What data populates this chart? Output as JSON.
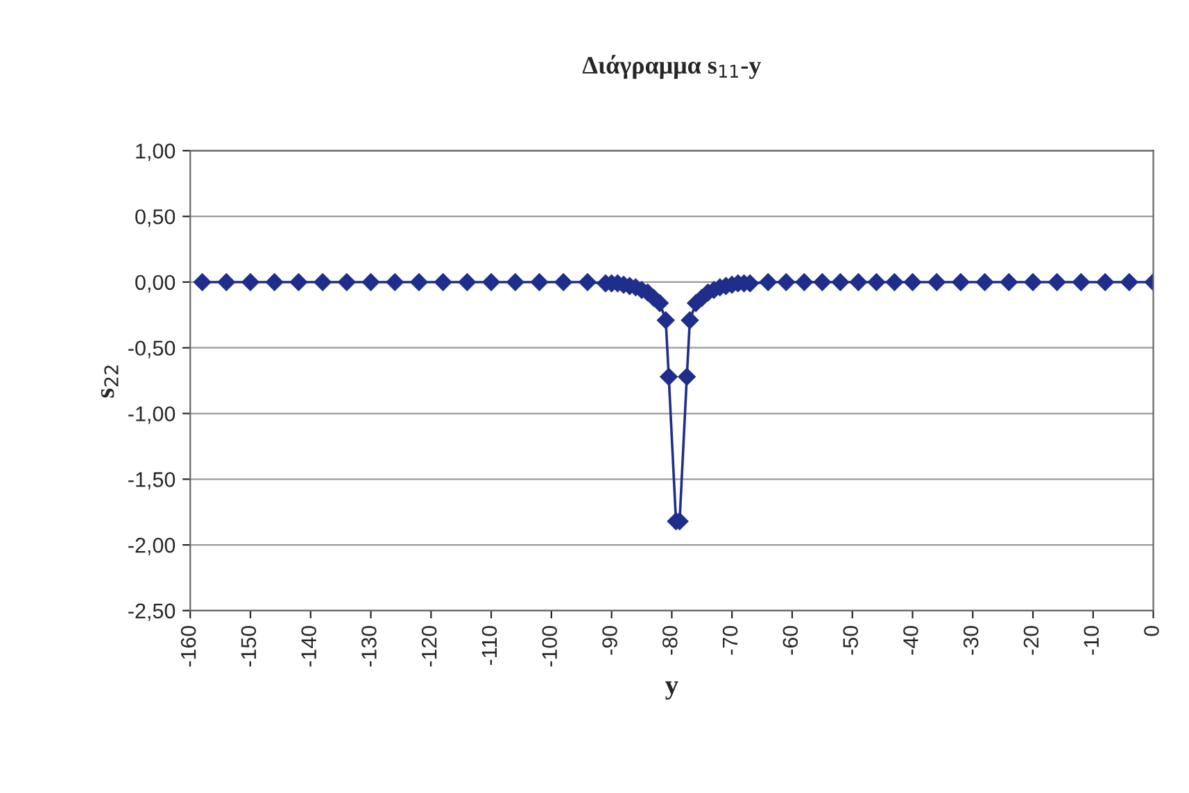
{
  "chart_data": {
    "type": "line",
    "title": "Διάγραμμα s$_{11}$-y",
    "xlabel": "y",
    "ylabel": "s$_{22}$",
    "series": [
      {
        "color": "#1f2e8c",
        "x": [
          -158,
          -154,
          -150,
          -146,
          -142,
          -138,
          -134,
          -130,
          -126,
          -122,
          -118,
          -114,
          -110,
          -106,
          -102,
          -98,
          -94,
          -91,
          -90,
          -89,
          -88,
          -87,
          -86,
          -85,
          -84,
          -83,
          -82,
          -81,
          -80.5,
          -79.3,
          -78.7,
          -77.5,
          -77,
          -76,
          -75,
          -74,
          -73,
          -72,
          -71,
          -70,
          -69,
          -68,
          -67,
          -64,
          -61,
          -58,
          -55,
          -52,
          -49,
          -46,
          -43,
          -40,
          -36,
          -32,
          -28,
          -24,
          -20,
          -16,
          -12,
          -8,
          -4,
          0
        ],
        "values": [
          0,
          0,
          0,
          0,
          0,
          0,
          0,
          0,
          0,
          0,
          0,
          0,
          0,
          0,
          0,
          0,
          0,
          -0.01,
          -0.01,
          -0.01,
          -0.02,
          -0.03,
          -0.04,
          -0.06,
          -0.08,
          -0.12,
          -0.16,
          -0.29,
          -0.72,
          -1.82,
          -1.82,
          -0.72,
          -0.29,
          -0.16,
          -0.12,
          -0.08,
          -0.06,
          -0.04,
          -0.03,
          -0.02,
          -0.01,
          -0.01,
          -0.01,
          0,
          0,
          0,
          0,
          0,
          0,
          0,
          0,
          0,
          0,
          0,
          0,
          0,
          0,
          0,
          0,
          0,
          0,
          0
        ]
      }
    ],
    "xlim": [
      -160,
      0
    ],
    "xticks": [
      -160,
      -150,
      -140,
      -130,
      -120,
      -110,
      -100,
      -90,
      -80,
      -70,
      -60,
      -50,
      -40,
      -30,
      -20,
      -10,
      0
    ],
    "ylim": [
      -2.5,
      1.0
    ],
    "yticks": [
      {
        "value": -2.5,
        "label": "-2,50"
      },
      {
        "value": -2.0,
        "label": "-2,00"
      },
      {
        "value": -1.5,
        "label": "-1,50"
      },
      {
        "value": -1.0,
        "label": "-1,00"
      },
      {
        "value": -0.5,
        "label": "-0,50"
      },
      {
        "value": 0,
        "label": "0,00"
      },
      {
        "value": 0.5,
        "label": "0,50"
      },
      {
        "value": 1.0,
        "label": "1,00"
      }
    ],
    "grid": "y",
    "marker": "diamond",
    "line_style": "solid"
  }
}
